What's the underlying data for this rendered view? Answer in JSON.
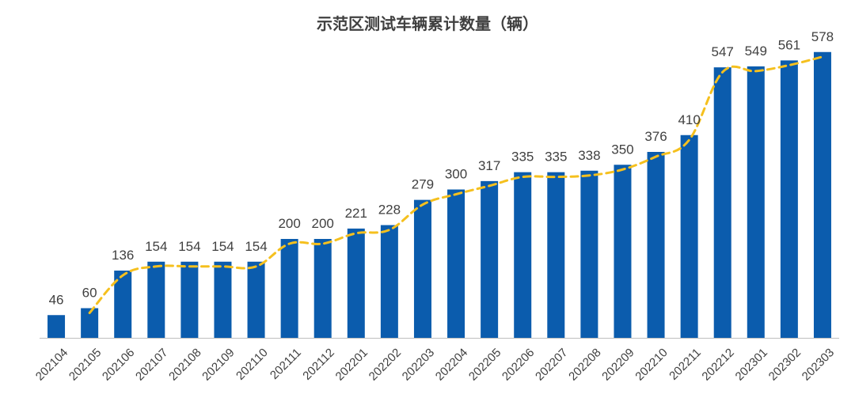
{
  "chart_data": {
    "type": "bar",
    "title": "示范区测试车辆累计数量（辆）",
    "xlabel": "",
    "ylabel": "",
    "ylim": [
      0,
      600
    ],
    "grid": false,
    "legend": "none",
    "categories": [
      "202104",
      "202105",
      "202106",
      "202107",
      "202108",
      "202109",
      "202110",
      "202111",
      "202112",
      "202201",
      "202202",
      "202203",
      "202204",
      "202205",
      "202206",
      "202207",
      "202208",
      "202209",
      "202210",
      "202211",
      "202212",
      "202301",
      "202302",
      "202303"
    ],
    "series": [
      {
        "name": "累计数量",
        "type": "bar",
        "values": [
          46,
          60,
          136,
          154,
          154,
          154,
          154,
          200,
          200,
          221,
          228,
          279,
          300,
          317,
          335,
          335,
          338,
          350,
          376,
          410,
          547,
          549,
          561,
          578
        ]
      },
      {
        "name": "趋势线",
        "type": "line",
        "style": "dashed",
        "values": [
          null,
          60,
          136,
          154,
          154,
          154,
          154,
          200,
          200,
          221,
          228,
          279,
          300,
          317,
          335,
          335,
          338,
          350,
          376,
          410,
          547,
          549,
          561,
          578
        ]
      }
    ],
    "colors": {
      "bar": "#0B5CAD",
      "trend": "#F5C01E",
      "label": "#404040",
      "axis": "#BFBFBF"
    }
  }
}
